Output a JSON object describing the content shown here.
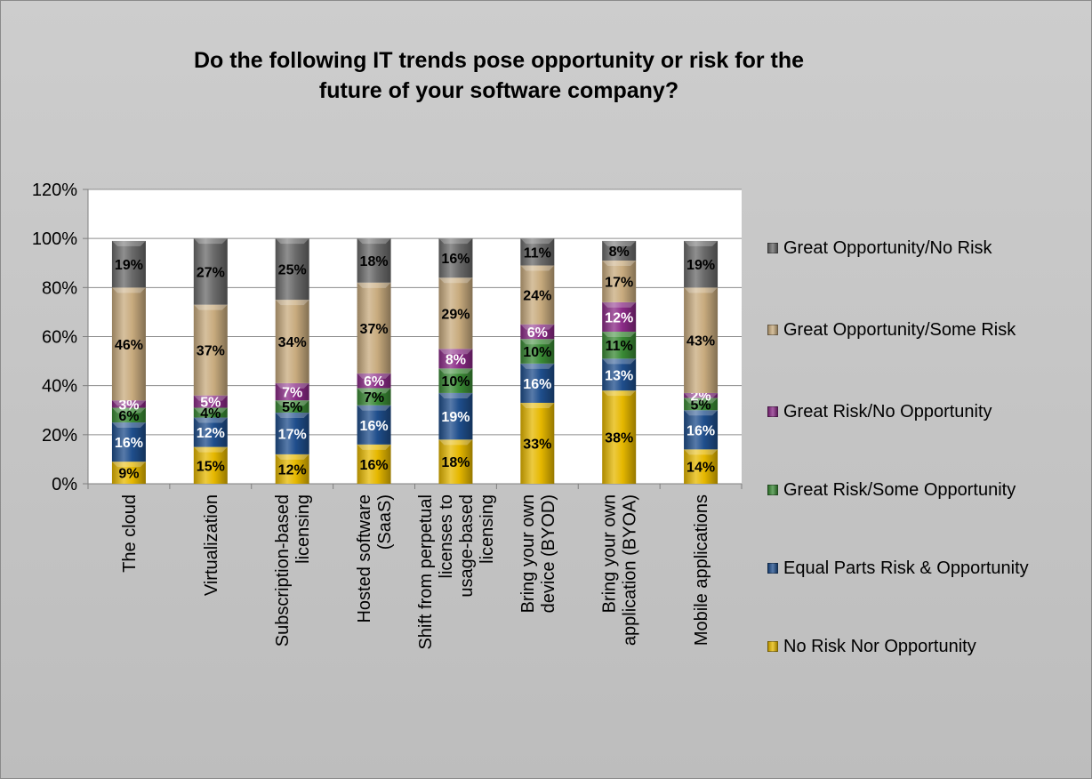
{
  "chart_data": {
    "type": "bar",
    "stacked": true,
    "title": "Do the following IT trends pose opportunity or risk for the\nfuture of your software company?",
    "ylim": [
      0,
      120
    ],
    "y_ticks": [
      "0%",
      "20%",
      "40%",
      "60%",
      "80%",
      "100%",
      "120%"
    ],
    "grid": true,
    "legend_position": "right",
    "categories": [
      "The cloud",
      "Virtualization",
      "Subscription-based licensing",
      "Hosted software (SaaS)",
      "Shift from perpetual licenses to usage-based licensing",
      "Bring your own device (BYOD)",
      "Bring your own application (BYOA)",
      "Mobile applications"
    ],
    "series": [
      {
        "name": "No Risk Nor Opportunity",
        "color": "#e6b800",
        "label_color": "#000000",
        "values": [
          9,
          15,
          12,
          16,
          18,
          33,
          38,
          14
        ]
      },
      {
        "name": "Equal Parts Risk & Opportunity",
        "color": "#1f4e8c",
        "label_color": "#ffffff",
        "values": [
          16,
          12,
          17,
          16,
          19,
          16,
          13,
          16
        ]
      },
      {
        "name": "Great Risk/Some Opportunity",
        "color": "#3a8a35",
        "label_color": "#000000",
        "values": [
          6,
          4,
          5,
          7,
          10,
          10,
          11,
          5
        ]
      },
      {
        "name": "Great Risk/No Opportunity",
        "color": "#8a2a86",
        "label_color": "#ffffff",
        "values": [
          3,
          5,
          7,
          6,
          8,
          6,
          12,
          2
        ]
      },
      {
        "name": "Great Opportunity/Some Risk",
        "color": "#c8ab7e",
        "label_color": "#000000",
        "values": [
          46,
          37,
          34,
          37,
          29,
          24,
          17,
          43
        ]
      },
      {
        "name": "Great Opportunity/No Risk",
        "color": "#6a6a6a",
        "label_color": "#000000",
        "values": [
          19,
          27,
          25,
          18,
          16,
          11,
          8,
          19
        ]
      }
    ]
  }
}
